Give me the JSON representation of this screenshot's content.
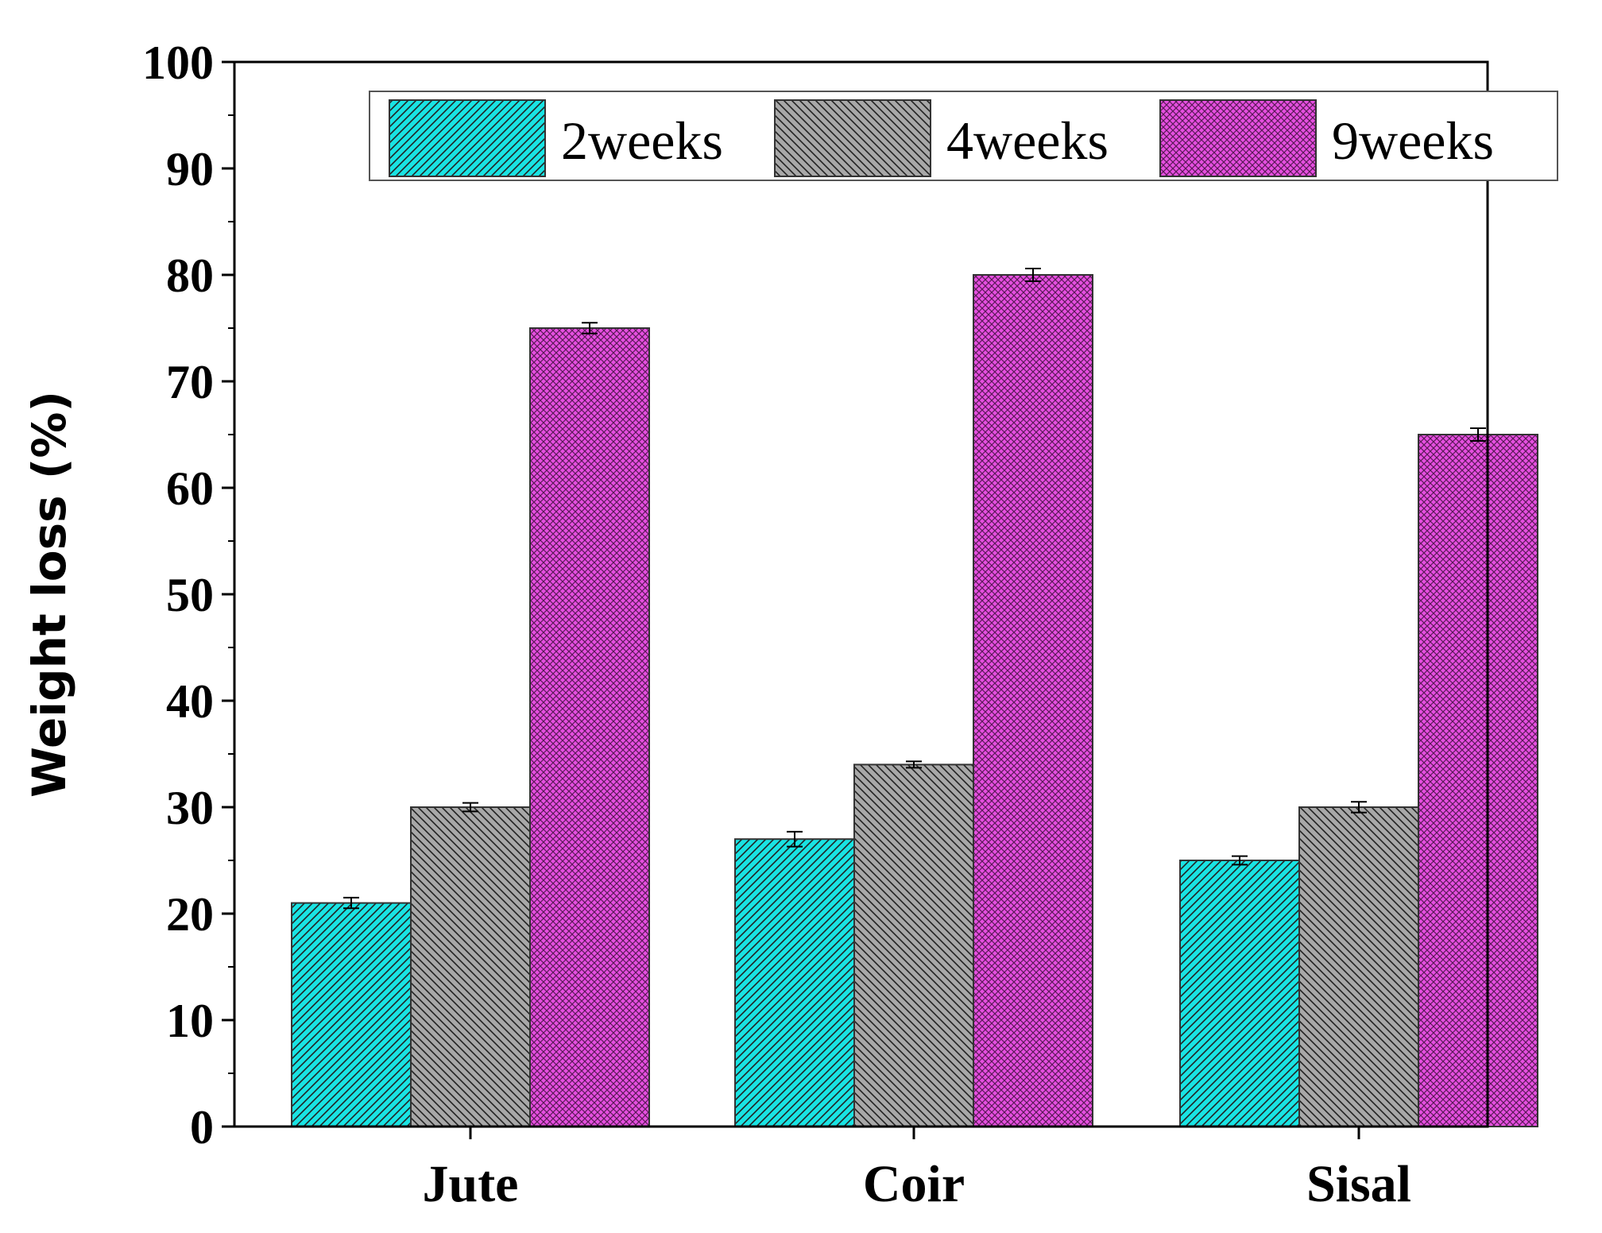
{
  "chart_data": {
    "type": "bar",
    "categories": [
      "Jute",
      "Coir",
      "Sisal"
    ],
    "series": [
      {
        "name": "2weeks",
        "values": [
          21,
          27,
          25
        ],
        "errors": [
          0.5,
          0.7,
          0.4
        ],
        "color": "#19e3e3",
        "pattern": "diagonal-forward"
      },
      {
        "name": "4weeks",
        "values": [
          30,
          34,
          30
        ],
        "errors": [
          0.4,
          0.3,
          0.5
        ],
        "color": "#a8a8a8",
        "pattern": "diagonal-backward"
      },
      {
        "name": "9weeks",
        "values": [
          75,
          80,
          65
        ],
        "errors": [
          0.5,
          0.6,
          0.6
        ],
        "color": "#e64fe0",
        "pattern": "crosshatch"
      }
    ],
    "title": "",
    "xlabel": "",
    "ylabel": "Weight loss (%)",
    "ylim": [
      0,
      100
    ],
    "yticks": [
      0,
      10,
      20,
      30,
      40,
      50,
      60,
      70,
      80,
      90,
      100
    ],
    "grid": false,
    "legend_position": "top-right"
  }
}
